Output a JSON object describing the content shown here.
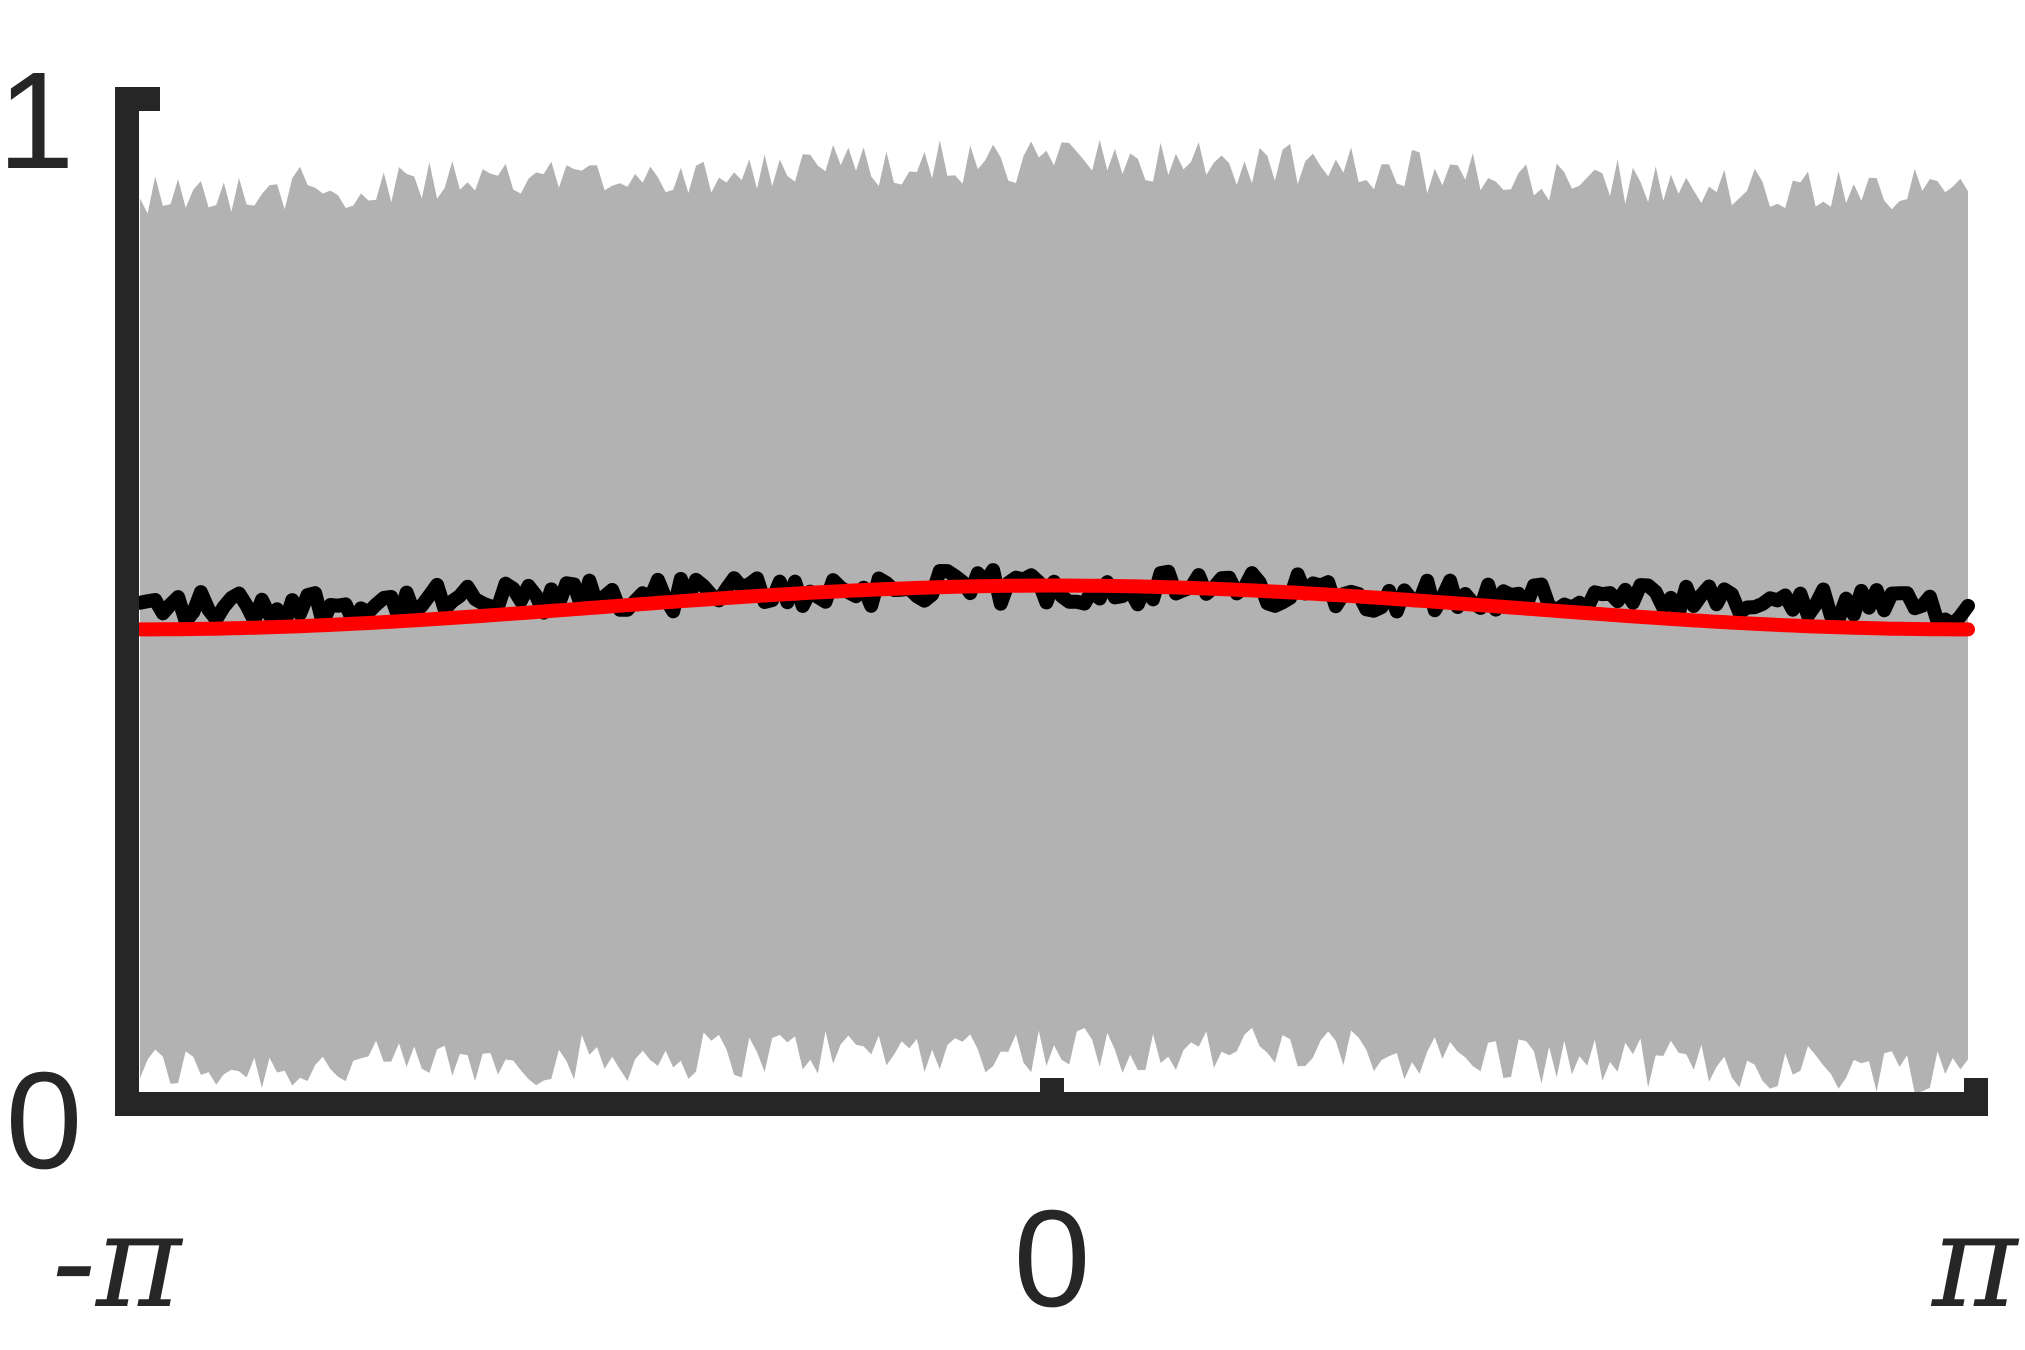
{
  "chart_data": {
    "type": "line",
    "title": "",
    "xlabel": "",
    "ylabel": "",
    "xlim": [
      -3.14159,
      3.14159
    ],
    "ylim": [
      0,
      1
    ],
    "x_ticks": [
      {
        "value": -3.14159,
        "label": "-π"
      },
      {
        "value": 0,
        "label": "0"
      },
      {
        "value": 3.14159,
        "label": "π"
      }
    ],
    "y_ticks": [
      {
        "value": 0,
        "label": "0"
      },
      {
        "value": 1,
        "label": "1"
      }
    ],
    "grid": false,
    "legend": "none",
    "n_points": 241,
    "band_upper": {
      "mean": 0.93,
      "amplitude": 0.03,
      "noise": 0.045
    },
    "band_lower": {
      "mean": 0.03,
      "amplitude": 0.02,
      "noise": 0.025
    },
    "noisy_series": {
      "mean": 0.49,
      "amplitude": 0.02,
      "noise": 0.018
    },
    "smooth_series": {
      "mean": 0.49,
      "amplitude": 0.022
    },
    "colors": {
      "band": "#b2b2b2",
      "noisy_line": "#000000",
      "smooth_line": "#ff0000",
      "axes": "#262626"
    }
  }
}
